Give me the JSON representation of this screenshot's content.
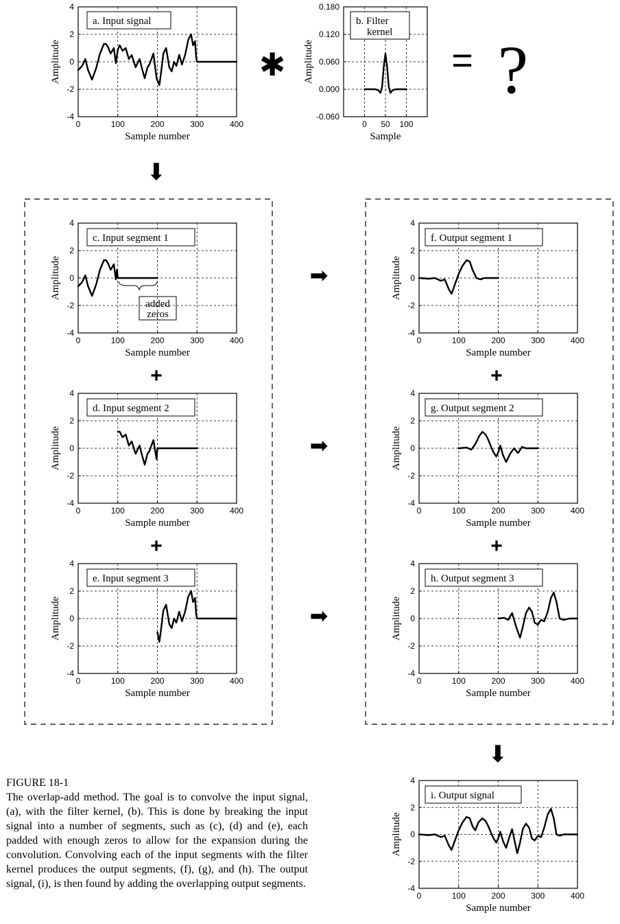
{
  "common": {
    "ylabel": "Amplitude",
    "xlabel": "Sample number",
    "xlabel_kernel": "Sample"
  },
  "operators": {
    "convolve": "✱",
    "equals": "=",
    "question": "?",
    "plus": "+",
    "arrow_right": "➡",
    "arrow_down": "⬇"
  },
  "annotation": {
    "added_zeros_line1": "added",
    "added_zeros_line2": "zeros"
  },
  "caption": {
    "title": "FIGURE 18-1",
    "text": "The overlap-add method. The goal is to convolve the input signal, (a), with the filter kernel, (b). This is done by breaking the input signal into a number of segments, such as (c), (d) and (e), each padded with enough zeros to allow for the expansion during the convolution. Convolving each of the input segments with the filter kernel produces the output segments, (f), (g), and (h). The output signal, (i), is then found by adding the overlapping output segments."
  },
  "chart_data": [
    {
      "id": "a",
      "type": "line",
      "title_lines": [
        "a. Input signal"
      ],
      "xlabel": "Sample number",
      "ylabel": "Amplitude",
      "xlim": [
        0,
        400
      ],
      "ylim": [
        -4,
        4
      ],
      "xticks": [
        0,
        100,
        200,
        300,
        400
      ],
      "yticks": [
        -4,
        -2,
        0,
        2,
        4
      ],
      "grid": true,
      "series": [
        {
          "x": [
            0,
            10,
            18,
            25,
            35,
            45,
            55,
            65,
            70,
            75,
            82,
            90,
            95,
            100,
            105,
            112,
            120,
            128,
            135,
            145,
            155,
            162,
            168,
            175,
            180,
            190,
            198,
            205,
            210,
            215,
            222,
            230,
            236,
            242,
            248,
            255,
            262,
            270,
            278,
            285,
            290,
            295,
            298,
            300,
            400
          ],
          "y": [
            -0.6,
            -0.3,
            0.2,
            -0.6,
            -1.3,
            -0.5,
            0.6,
            1.3,
            1.3,
            1.1,
            0.6,
            1.0,
            -0.1,
            0.9,
            1.2,
            0.8,
            1.0,
            0.2,
            0.5,
            -0.4,
            0.2,
            -0.6,
            -1.2,
            -0.4,
            -0.2,
            0.6,
            -1.2,
            -1.7,
            -0.6,
            0.6,
            1.0,
            -0.4,
            -0.7,
            0.0,
            -0.3,
            0.5,
            -0.2,
            0.5,
            1.6,
            2.0,
            1.2,
            1.5,
            0.3,
            0,
            0
          ]
        }
      ]
    },
    {
      "id": "b",
      "type": "line",
      "title_lines": [
        "b.  Filter",
        "kernel"
      ],
      "xlabel": "Sample",
      "ylabel": "Amplitude",
      "xlim": [
        -50,
        150
      ],
      "ylim": [
        -0.06,
        0.18
      ],
      "xticks": [
        0,
        50,
        100
      ],
      "yticks": [
        -0.06,
        0.0,
        0.06,
        0.12,
        0.18
      ],
      "ytick_labels": [
        "-0.060",
        "0.000",
        "0.060",
        "0.120",
        "0.180"
      ],
      "grid": true,
      "series": [
        {
          "x": [
            0,
            25,
            33,
            38,
            42,
            46,
            50,
            54,
            58,
            62,
            67,
            75,
            100
          ],
          "y": [
            0.0,
            0.0,
            -0.002,
            -0.008,
            0.005,
            0.05,
            0.078,
            0.05,
            0.005,
            -0.008,
            -0.002,
            0.0,
            0.0
          ]
        }
      ]
    },
    {
      "id": "c",
      "type": "line",
      "title_lines": [
        "c.  Input segment 1"
      ],
      "xlabel": "Sample number",
      "ylabel": "Amplitude",
      "xlim": [
        0,
        400
      ],
      "ylim": [
        -4,
        4
      ],
      "xticks": [
        0,
        100,
        200,
        300,
        400
      ],
      "yticks": [
        -4,
        -2,
        0,
        2,
        4
      ],
      "grid": true,
      "series": [
        {
          "x": [
            0,
            10,
            18,
            25,
            35,
            45,
            55,
            65,
            70,
            75,
            82,
            90,
            95,
            98,
            100,
            200
          ],
          "y": [
            -0.6,
            -0.3,
            0.2,
            -0.6,
            -1.3,
            -0.5,
            0.6,
            1.3,
            1.3,
            1.1,
            0.6,
            1.0,
            -0.1,
            0.6,
            0,
            0
          ]
        }
      ]
    },
    {
      "id": "d",
      "type": "line",
      "title_lines": [
        "d.  Input segment 2"
      ],
      "xlabel": "Sample number",
      "ylabel": "Amplitude",
      "xlim": [
        0,
        400
      ],
      "ylim": [
        -4,
        4
      ],
      "xticks": [
        0,
        100,
        200,
        300,
        400
      ],
      "yticks": [
        -4,
        -2,
        0,
        2,
        4
      ],
      "grid": true,
      "series": [
        {
          "x": [
            100,
            105,
            112,
            120,
            128,
            135,
            145,
            155,
            162,
            168,
            175,
            180,
            190,
            198,
            200,
            300
          ],
          "y": [
            1.2,
            1.2,
            0.8,
            1.0,
            0.2,
            0.5,
            -0.4,
            0.2,
            -0.6,
            -1.2,
            -0.4,
            -0.2,
            0.6,
            -0.8,
            0,
            0
          ]
        }
      ]
    },
    {
      "id": "e",
      "type": "line",
      "title_lines": [
        "e.  Input segment 3"
      ],
      "xlabel": "Sample number",
      "ylabel": "Amplitude",
      "xlim": [
        0,
        400
      ],
      "ylim": [
        -4,
        4
      ],
      "xticks": [
        0,
        100,
        200,
        300,
        400
      ],
      "yticks": [
        -4,
        -2,
        0,
        2,
        4
      ],
      "grid": true,
      "series": [
        {
          "x": [
            200,
            205,
            210,
            215,
            222,
            230,
            236,
            242,
            248,
            255,
            262,
            270,
            278,
            285,
            290,
            295,
            298,
            300,
            400
          ],
          "y": [
            -1.0,
            -1.7,
            -0.6,
            0.6,
            1.0,
            -0.4,
            -0.7,
            0.0,
            -0.3,
            0.5,
            -0.2,
            0.5,
            1.6,
            2.0,
            1.2,
            1.5,
            0.3,
            0,
            0
          ]
        }
      ]
    },
    {
      "id": "f",
      "type": "line",
      "title_lines": [
        "f.  Output segment 1"
      ],
      "xlabel": "Sample number",
      "ylabel": "Amplitude",
      "xlim": [
        0,
        400
      ],
      "ylim": [
        -4,
        4
      ],
      "xticks": [
        0,
        100,
        200,
        300,
        400
      ],
      "yticks": [
        -4,
        -2,
        0,
        2,
        4
      ],
      "grid": true,
      "series": [
        {
          "x": [
            0,
            25,
            40,
            55,
            65,
            75,
            82,
            90,
            100,
            110,
            120,
            128,
            135,
            145,
            155,
            165,
            180,
            200
          ],
          "y": [
            0,
            -0.05,
            0.0,
            -0.2,
            -0.1,
            -0.8,
            -1.15,
            -0.5,
            0.3,
            0.9,
            1.3,
            1.2,
            0.6,
            0.0,
            -0.1,
            0.0,
            0,
            0
          ]
        }
      ]
    },
    {
      "id": "g",
      "type": "line",
      "title_lines": [
        "g.  Output segment 2"
      ],
      "xlabel": "Sample number",
      "ylabel": "Amplitude",
      "xlim": [
        0,
        400
      ],
      "ylim": [
        -4,
        4
      ],
      "xticks": [
        0,
        100,
        200,
        300,
        400
      ],
      "yticks": [
        -4,
        -2,
        0,
        2,
        4
      ],
      "grid": true,
      "series": [
        {
          "x": [
            100,
            120,
            132,
            142,
            152,
            160,
            168,
            175,
            182,
            188,
            195,
            200,
            205,
            212,
            220,
            230,
            240,
            250,
            260,
            270,
            300
          ],
          "y": [
            0,
            0.05,
            -0.1,
            0.3,
            0.9,
            1.2,
            1.0,
            0.6,
            0.1,
            -0.3,
            -0.6,
            -0.3,
            0.2,
            -0.5,
            -1.0,
            -0.4,
            0.0,
            -0.35,
            0.1,
            0.0,
            0
          ]
        }
      ]
    },
    {
      "id": "h",
      "type": "line",
      "title_lines": [
        "h.  Output segment 3"
      ],
      "xlabel": "Sample number",
      "ylabel": "Amplitude",
      "xlim": [
        0,
        400
      ],
      "ylim": [
        -4,
        4
      ],
      "xticks": [
        0,
        100,
        200,
        300,
        400
      ],
      "yticks": [
        -4,
        -2,
        0,
        2,
        4
      ],
      "grid": true,
      "series": [
        {
          "x": [
            200,
            215,
            225,
            235,
            245,
            255,
            262,
            270,
            278,
            285,
            292,
            300,
            308,
            316,
            325,
            333,
            340,
            347,
            355,
            365,
            380,
            400
          ],
          "y": [
            0,
            0.05,
            -0.1,
            0.4,
            -0.6,
            -1.4,
            -0.6,
            0.4,
            0.8,
            0.5,
            -0.3,
            -0.45,
            -0.1,
            -0.2,
            0.5,
            1.5,
            1.9,
            1.2,
            0.0,
            -0.1,
            0,
            0
          ]
        }
      ]
    },
    {
      "id": "i",
      "type": "line",
      "title_lines": [
        "i.  Output signal"
      ],
      "xlabel": "Sample number",
      "ylabel": "Amplitude",
      "xlim": [
        0,
        400
      ],
      "ylim": [
        -4,
        4
      ],
      "xticks": [
        0,
        100,
        200,
        300,
        400
      ],
      "yticks": [
        -4,
        -2,
        0,
        2,
        4
      ],
      "grid": true,
      "series": [
        {
          "x": [
            0,
            25,
            40,
            55,
            65,
            75,
            82,
            90,
            100,
            110,
            120,
            128,
            135,
            142,
            150,
            160,
            168,
            175,
            182,
            188,
            195,
            200,
            205,
            212,
            220,
            228,
            235,
            242,
            248,
            255,
            262,
            270,
            278,
            285,
            292,
            300,
            308,
            316,
            325,
            333,
            340,
            347,
            355,
            365,
            380,
            400
          ],
          "y": [
            0,
            -0.05,
            0.0,
            -0.2,
            -0.1,
            -0.8,
            -1.15,
            -0.5,
            0.3,
            0.9,
            1.3,
            1.2,
            0.6,
            0.3,
            0.9,
            1.2,
            1.0,
            0.6,
            0.1,
            -0.3,
            -0.6,
            -0.3,
            0.2,
            -0.5,
            -1.0,
            -0.2,
            0.4,
            -0.6,
            -1.4,
            -0.6,
            0.4,
            0.8,
            0.5,
            -0.3,
            -0.45,
            -0.1,
            -0.2,
            0.5,
            1.5,
            1.9,
            1.2,
            0.0,
            -0.1,
            0,
            0,
            0
          ]
        }
      ]
    }
  ]
}
